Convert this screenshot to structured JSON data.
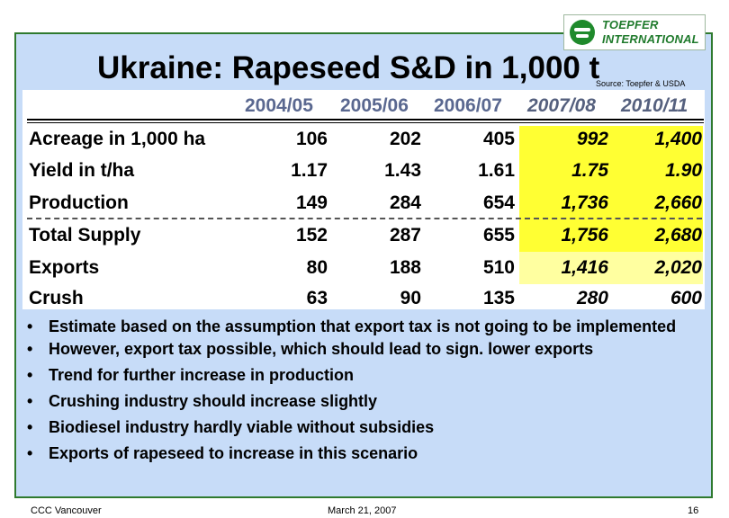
{
  "logo": {
    "line1": "TOEPFER",
    "line2": "INTERNATIONAL"
  },
  "title": "Ukraine: Rapeseed  S&D in 1,000 t",
  "source": "Source: Toepfer & USDA",
  "table": {
    "columns": [
      "2004/05",
      "2005/06",
      "2006/07",
      "2007/08",
      "2010/11"
    ],
    "rows": [
      {
        "label": "Acreage in 1,000 ha",
        "values": [
          "106",
          "202",
          "405",
          "992",
          "1,400"
        ]
      },
      {
        "label": "Yield in t/ha",
        "values": [
          "1.17",
          "1.43",
          "1.61",
          "1.75",
          "1.90"
        ]
      },
      {
        "label": "Production",
        "values": [
          "149",
          "284",
          "654",
          "1,736",
          "2,660"
        ]
      },
      {
        "label": "Total Supply",
        "values": [
          "152",
          "287",
          "655",
          "1,756",
          "2,680"
        ]
      },
      {
        "label": "Exports",
        "values": [
          "80",
          "188",
          "510",
          "1,416",
          "2,020"
        ]
      },
      {
        "label": "Crush",
        "values": [
          "63",
          "90",
          "135",
          "280",
          "600"
        ]
      }
    ],
    "highlight_colors": {
      "forecast": "#ffff33",
      "forecast_light": "#ffffa0"
    }
  },
  "bullets": [
    "Estimate based on the assumption that export tax is not going to be implemented",
    "However, export tax possible, which should lead to sign. lower exports",
    "Trend for further increase in production",
    "Crushing industry should increase slightly",
    "Biodiesel industry hardly viable without subsidies",
    "Exports of rapeseed to increase in this scenario"
  ],
  "bullet_symbol": "•",
  "footer": {
    "left": "CCC Vancouver",
    "center": "March 21, 2007",
    "page": "16"
  },
  "colors": {
    "frame_border": "#2f7a2f",
    "background": "#c7dcf8"
  }
}
